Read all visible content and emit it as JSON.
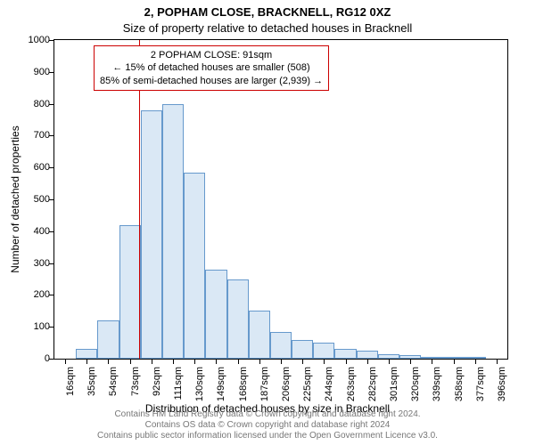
{
  "title": "2, POPHAM CLOSE, BRACKNELL, RG12 0XZ",
  "subtitle": "Size of property relative to detached houses in Bracknell",
  "ylabel": "Number of detached properties",
  "xlabel": "Distribution of detached houses by size in Bracknell",
  "footer1": "Contains HM Land Registry data © Crown copyright and database right 2024.",
  "footer2": "Contains OS data © Crown copyright and database right 2024",
  "footer3": "Contains public sector information licensed under the Open Government Licence v3.0.",
  "annotation": {
    "line1": "2 POPHAM CLOSE: 91sqm",
    "line2": "← 15% of detached houses are smaller (508)",
    "line3": "85% of semi-detached houses are larger (2,939) →"
  },
  "chart": {
    "type": "histogram",
    "background_color": "#ffffff",
    "bar_fill": "#dae8f5",
    "bar_border": "#6699cc",
    "marker_color": "#cc0000",
    "axis_color": "#000000",
    "ylim": [
      0,
      1000
    ],
    "ytick_step": 100,
    "marker_x_sqm": 91,
    "x_start_sqm": 16,
    "x_step_sqm": 19,
    "categories": [
      "16sqm",
      "35sqm",
      "54sqm",
      "73sqm",
      "92sqm",
      "111sqm",
      "130sqm",
      "149sqm",
      "168sqm",
      "187sqm",
      "206sqm",
      "225sqm",
      "244sqm",
      "263sqm",
      "282sqm",
      "301sqm",
      "320sqm",
      "339sqm",
      "358sqm",
      "377sqm",
      "396sqm"
    ],
    "values": [
      0,
      30,
      120,
      420,
      780,
      800,
      585,
      280,
      250,
      150,
      85,
      60,
      50,
      30,
      25,
      15,
      10,
      5,
      5,
      5,
      0
    ]
  }
}
